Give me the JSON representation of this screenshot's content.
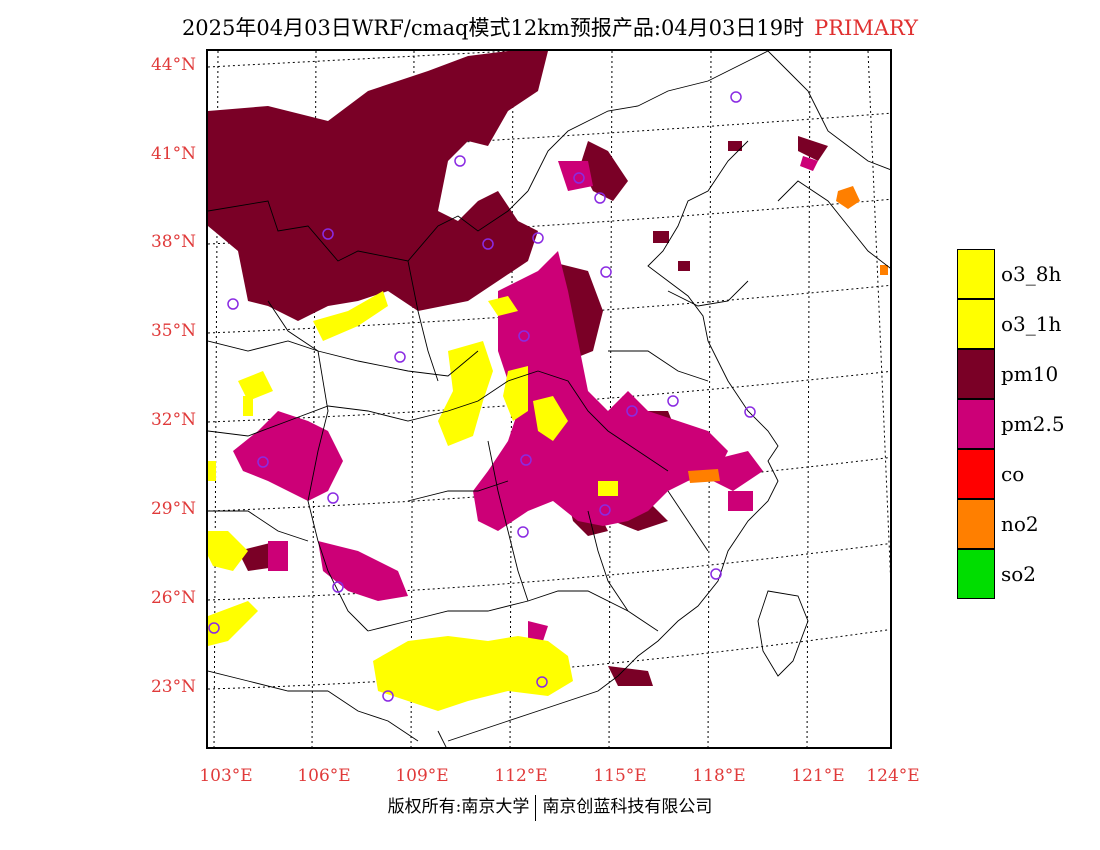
{
  "title": {
    "main": "2025年04月03日WRF/cmaq模式12km预报产品:04月03日19时",
    "tag": "PRIMARY",
    "tag_color": "#e03030"
  },
  "axes": {
    "lat_labels": [
      "44°N",
      "41°N",
      "38°N",
      "35°N",
      "32°N",
      "29°N",
      "26°N",
      "23°N"
    ],
    "lon_labels": [
      "103°E",
      "106°E",
      "109°E",
      "112°E",
      "115°E",
      "118°E",
      "121°E",
      "124°E"
    ],
    "label_color": "#e03a3a"
  },
  "legend": [
    {
      "label": "o3_8h",
      "color": "#ffff00"
    },
    {
      "label": "o3_1h",
      "color": "#ffff00"
    },
    {
      "label": "pm10",
      "color": "#7a0026"
    },
    {
      "label": "pm2.5",
      "color": "#cc0077"
    },
    {
      "label": "co",
      "color": "#ff0000"
    },
    {
      "label": "no2",
      "color": "#ff7f00"
    },
    {
      "label": "so2",
      "color": "#00dd00"
    }
  ],
  "footer": {
    "left": "版权所有:南京大学",
    "right": "南京创蓝科技有限公司"
  }
}
